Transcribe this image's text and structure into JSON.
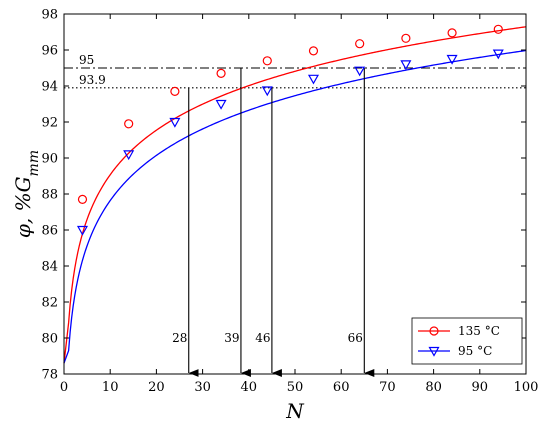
{
  "chart_data": {
    "type": "line",
    "xlabel": "N",
    "ylabel": "φ, %G_mm",
    "xlim": [
      0,
      100
    ],
    "ylim": [
      78,
      98
    ],
    "xticks": [
      0,
      10,
      20,
      30,
      40,
      50,
      60,
      70,
      80,
      90,
      100
    ],
    "yticks": [
      78,
      80,
      82,
      84,
      86,
      88,
      90,
      92,
      94,
      96,
      98
    ],
    "grid": false,
    "legend_position": "bottom-right",
    "series": [
      {
        "name": "135 °C",
        "color": "#ff0000",
        "marker": "circle",
        "curve_a": 80.85,
        "curve_b": 3.57,
        "x": [
          4,
          14,
          24,
          34,
          44,
          54,
          64,
          74,
          84,
          94
        ],
        "y": [
          87.7,
          91.9,
          93.7,
          94.7,
          95.4,
          95.95,
          96.35,
          96.65,
          96.95,
          97.15
        ]
      },
      {
        "name": "95 °C",
        "color": "#0000ff",
        "marker": "triangle-down",
        "curve_a": 79.3,
        "curve_b": 3.62,
        "x": [
          4,
          14,
          24,
          34,
          44,
          54,
          64,
          74,
          84,
          94
        ],
        "y": [
          86.0,
          90.2,
          92.0,
          93.0,
          93.75,
          94.4,
          94.85,
          95.2,
          95.5,
          95.8
        ]
      }
    ],
    "reference_lines": [
      {
        "label": "95",
        "y": 95,
        "style": "dashdot"
      },
      {
        "label": "93.9",
        "y": 93.9,
        "style": "dotted"
      }
    ],
    "arrows": [
      {
        "label": "28",
        "x": 27.0,
        "y_top": 93.9
      },
      {
        "label": "39",
        "x": 38.3,
        "y_top": 95.0
      },
      {
        "label": "46",
        "x": 45.0,
        "y_top": 93.9
      },
      {
        "label": "66",
        "x": 65.0,
        "y_top": 95.0
      }
    ]
  }
}
